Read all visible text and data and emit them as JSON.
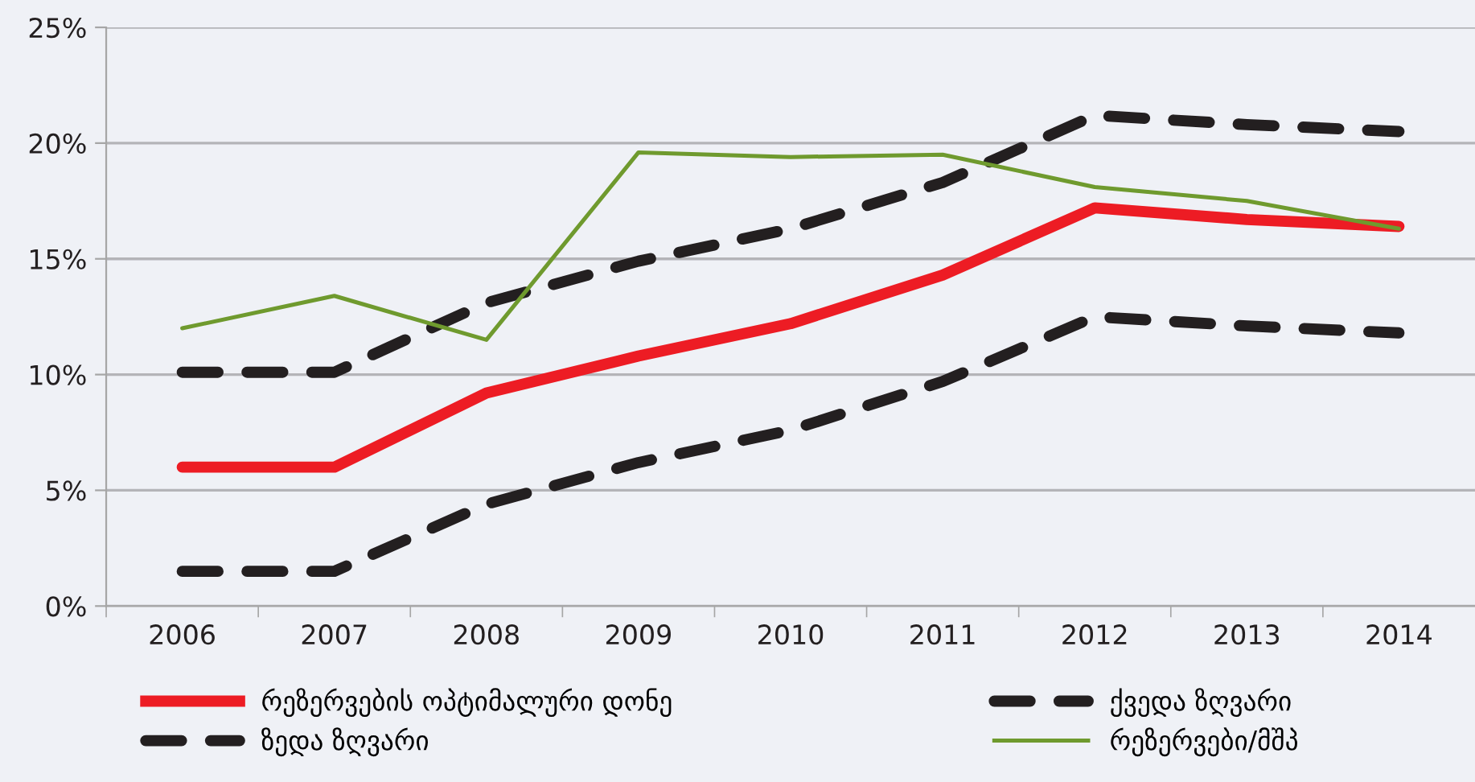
{
  "chart_data": {
    "type": "line",
    "categories": [
      "2006",
      "2007",
      "2008",
      "2009",
      "2010",
      "2011",
      "2012",
      "2013",
      "2014"
    ],
    "series": [
      {
        "name": "რეზერვების ოპტიმალური დონე",
        "color": "#ed1c24",
        "line_style": "solid",
        "values": [
          6.0,
          6.0,
          9.2,
          10.8,
          12.2,
          14.3,
          17.2,
          16.7,
          16.4
        ]
      },
      {
        "name": "ქვედა ზღვარი",
        "color": "#231f20",
        "line_style": "dashed",
        "values": [
          1.5,
          1.5,
          4.4,
          6.2,
          7.6,
          9.7,
          12.5,
          12.1,
          11.8
        ]
      },
      {
        "name": "ზედა ზღვარი",
        "color": "#231f20",
        "line_style": "dashed",
        "values": [
          10.1,
          10.1,
          13.1,
          14.9,
          16.3,
          18.3,
          21.2,
          20.8,
          20.5
        ]
      },
      {
        "name": "რეზერვები/მშპ",
        "color": "#6f9a2e",
        "line_style": "solid",
        "values": [
          12.0,
          13.4,
          11.5,
          19.6,
          19.4,
          19.5,
          18.1,
          17.5,
          16.3
        ]
      }
    ],
    "ylim": [
      0,
      25
    ],
    "yticks": [
      {
        "value": 0,
        "label": "0%"
      },
      {
        "value": 5,
        "label": "5%"
      },
      {
        "value": 10,
        "label": "10%"
      },
      {
        "value": 15,
        "label": "15%"
      },
      {
        "value": 20,
        "label": "20%"
      },
      {
        "value": 25,
        "label": "25%"
      }
    ],
    "grid": "y",
    "legend": "bottom",
    "marker": "none"
  }
}
